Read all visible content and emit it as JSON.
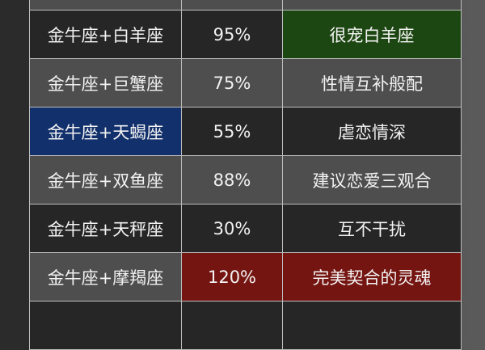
{
  "colors": {
    "dark": "#262626",
    "gray": "#4e4e4e",
    "green": "#1d4712",
    "blue": "#12306b",
    "red": "#751511"
  },
  "rows": [
    {
      "pair": "金牛座+白羊座",
      "percent": "95%",
      "comment": "很宠白羊座"
    },
    {
      "pair": "金牛座+巨蟹座",
      "percent": "75%",
      "comment": "性情互补般配"
    },
    {
      "pair": "金牛座+天蝎座",
      "percent": "55%",
      "comment": "虐恋情深"
    },
    {
      "pair": "金牛座+双鱼座",
      "percent": "88%",
      "comment": "建议恋爱三观合"
    },
    {
      "pair": "金牛座+天秤座",
      "percent": "30%",
      "comment": "互不干扰"
    },
    {
      "pair": "金牛座+摩羯座",
      "percent": "120%",
      "comment": "完美契合的灵魂"
    }
  ]
}
